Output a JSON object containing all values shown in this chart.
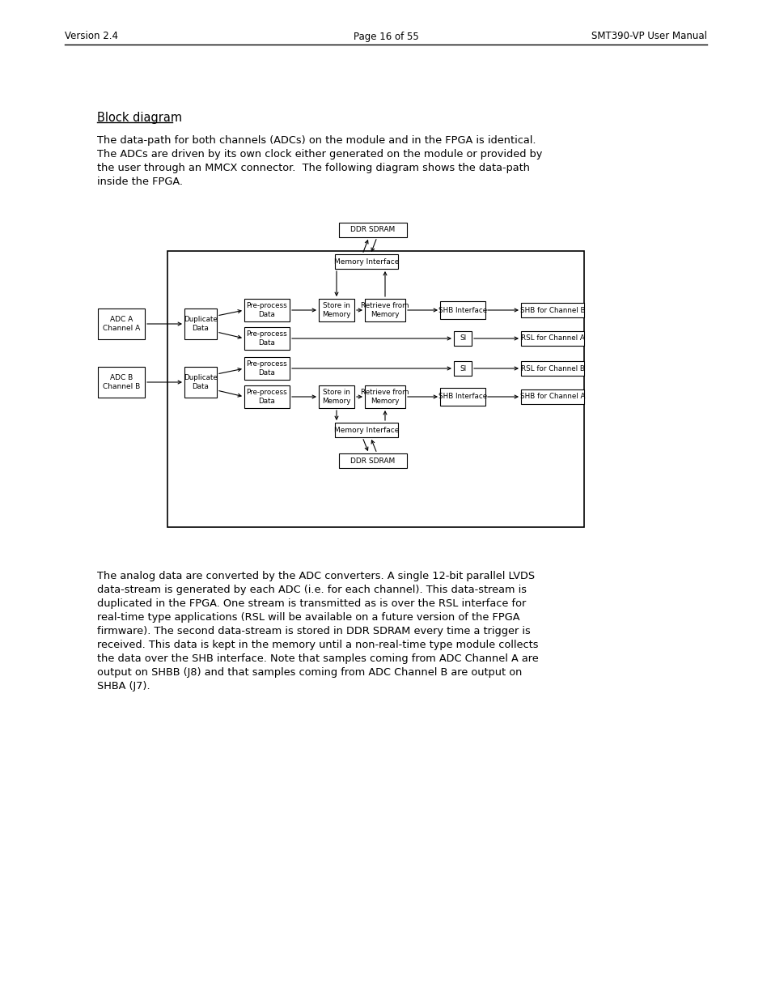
{
  "header_left": "Version 2.4",
  "header_center": "Page 16 of 55",
  "header_right": "SMT390-VP User Manual",
  "section_title": "Block diagram",
  "intro_text": "The data-path for both channels (ADCs) on the module and in the FPGA is identical.\nThe ADCs are driven by its own clock either generated on the module or provided by\nthe user through an MMCX connector.  The following diagram shows the data-path\ninside the FPGA.",
  "body_text": "The analog data are converted by the ADC converters. A single 12-bit parallel LVDS\ndata-stream is generated by each ADC (i.e. for each channel). This data-stream is\nduplicated in the FPGA. One stream is transmitted as is over the RSL interface for\nreal-time type applications (RSL will be available on a future version of the FPGA\nfirmware). The second data-stream is stored in DDR SDRAM every time a trigger is\nreceived. This data is kept in the memory until a non-real-time type module collects\nthe data over the SHB interface. Note that samples coming from ADC Channel A are\noutput on SHBB (J8) and that samples coming from ADC Channel B are output on\nSHBA (J7).",
  "bg_color": "#ffffff",
  "text_color": "#000000"
}
